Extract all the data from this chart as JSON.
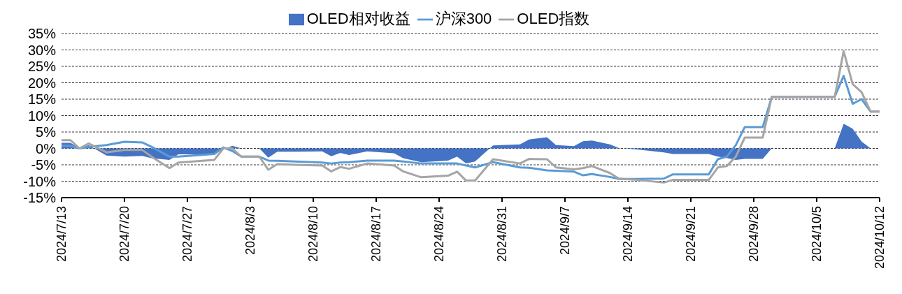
{
  "chart_data": {
    "type": "line",
    "legend": "top",
    "grid": "y",
    "x": [
      "2024-07-13",
      "2024-07-14",
      "2024-07-15",
      "2024-07-16",
      "2024-07-18",
      "2024-07-20",
      "2024-07-22",
      "2024-07-23",
      "2024-07-25",
      "2024-07-26",
      "2024-07-30",
      "2024-07-31",
      "2024-08-01",
      "2024-08-02",
      "2024-08-04",
      "2024-08-05",
      "2024-08-06",
      "2024-08-08",
      "2024-08-11",
      "2024-08-12",
      "2024-08-13",
      "2024-08-14",
      "2024-08-16",
      "2024-08-19",
      "2024-08-20",
      "2024-08-22",
      "2024-08-25",
      "2024-08-26",
      "2024-08-27",
      "2024-08-28",
      "2024-08-30",
      "2024-09-02",
      "2024-09-03",
      "2024-09-05",
      "2024-09-06",
      "2024-09-08",
      "2024-09-09",
      "2024-09-10",
      "2024-09-12",
      "2024-09-13",
      "2024-09-15",
      "2024-09-18",
      "2024-09-19",
      "2024-09-23",
      "2024-09-24",
      "2024-09-25",
      "2024-09-26",
      "2024-09-27",
      "2024-09-29",
      "2024-09-30",
      "2024-10-07",
      "2024-10-08",
      "2024-10-09",
      "2024-10-10",
      "2024-10-11",
      "2024-10-12"
    ],
    "series": [
      {
        "name": "OLED相对收益",
        "type": "area",
        "color": "#4472c4",
        "values": [
          1.7,
          1.7,
          0,
          1,
          -2.2,
          -2.5,
          -2.3,
          -3,
          -3.5,
          -1.8,
          -1.8,
          -0.3,
          0.8,
          0,
          0,
          -2.8,
          -1,
          -1,
          -0.9,
          -2.4,
          -1.4,
          -2,
          -0.9,
          -1.5,
          -3,
          -4.2,
          -3.7,
          -2.5,
          -4.6,
          -4,
          0.9,
          1.2,
          2.7,
          3.4,
          1,
          0.7,
          2.2,
          2.4,
          1.2,
          0.1,
          -0.3,
          -1.2,
          -1.7,
          -1.7,
          -2.5,
          -2.9,
          -3.5,
          -3.2,
          -3.2,
          0,
          0,
          7.5,
          6,
          2.1,
          0,
          0
        ]
      },
      {
        "name": "沪深300",
        "type": "line",
        "color": "#5b9bd5",
        "values": [
          0.8,
          0.8,
          0,
          0.5,
          1,
          2,
          1.8,
          0.5,
          -2.5,
          -2.5,
          -1.7,
          0.3,
          -0.8,
          -2.5,
          -2.5,
          -3.7,
          -3.8,
          -4,
          -4.3,
          -4.6,
          -4.3,
          -4.2,
          -3.7,
          -3.7,
          -4,
          -4.6,
          -4.6,
          -4.6,
          -5.2,
          -5.8,
          -4.2,
          -5.8,
          -5.9,
          -6.7,
          -6.8,
          -7.1,
          -8.2,
          -7.8,
          -8.7,
          -9.3,
          -9.3,
          -9.2,
          -7.9,
          -7.9,
          -3.3,
          -2.5,
          1,
          6.5,
          6.5,
          15.7,
          15.7,
          22.1,
          13.6,
          15,
          11.2,
          11.2
        ]
      },
      {
        "name": "OLED指数",
        "type": "line",
        "color": "#a5a5a5",
        "values": [
          2.5,
          2.5,
          0,
          1.5,
          -1.2,
          -0.5,
          -0.5,
          -2.5,
          -6,
          -4.3,
          -3.5,
          0,
          0,
          -2.5,
          -2.5,
          -6.5,
          -4.8,
          -5,
          -5.2,
          -7,
          -5.7,
          -6.2,
          -4.6,
          -5.2,
          -7,
          -8.8,
          -8.3,
          -7.1,
          -9.8,
          -9.8,
          -3.3,
          -4.6,
          -3.2,
          -3.3,
          -5.8,
          -6.4,
          -6,
          -5.4,
          -7.5,
          -9.2,
          -9.6,
          -10.4,
          -9.6,
          -9.6,
          -5.8,
          -5.4,
          -2.5,
          3.3,
          3.3,
          15.7,
          15.7,
          29.6,
          19.6,
          17.1,
          11.2,
          11.2
        ]
      }
    ],
    "xlim": [
      "2024-07-13",
      "2024-10-12"
    ],
    "xticks": [
      {
        "value": "2024-07-13",
        "label": "2024/7/13"
      },
      {
        "value": "2024-07-20",
        "label": "2024/7/20"
      },
      {
        "value": "2024-07-27",
        "label": "2024/7/27"
      },
      {
        "value": "2024-08-03",
        "label": "2024/8/3"
      },
      {
        "value": "2024-08-10",
        "label": "2024/8/10"
      },
      {
        "value": "2024-08-17",
        "label": "2024/8/17"
      },
      {
        "value": "2024-08-24",
        "label": "2024/8/24"
      },
      {
        "value": "2024-08-31",
        "label": "2024/8/31"
      },
      {
        "value": "2024-09-07",
        "label": "2024/9/7"
      },
      {
        "value": "2024-09-14",
        "label": "2024/9/14"
      },
      {
        "value": "2024-09-21",
        "label": "2024/9/21"
      },
      {
        "value": "2024-09-28",
        "label": "2024/9/28"
      },
      {
        "value": "2024-10-05",
        "label": "2024/10/5"
      },
      {
        "value": "2024-10-12",
        "label": "2024/10/12"
      }
    ],
    "ylim": [
      -15,
      35
    ],
    "yticks": [
      {
        "value": -15,
        "label": "-15%"
      },
      {
        "value": -10,
        "label": "-10%"
      },
      {
        "value": -5,
        "label": "-5%"
      },
      {
        "value": 0,
        "label": "0%"
      },
      {
        "value": 5,
        "label": "5%"
      },
      {
        "value": 10,
        "label": "10%"
      },
      {
        "value": 15,
        "label": "15%"
      },
      {
        "value": 20,
        "label": "20%"
      },
      {
        "value": 25,
        "label": "25%"
      },
      {
        "value": 30,
        "label": "30%"
      },
      {
        "value": 35,
        "label": "35%"
      }
    ]
  }
}
